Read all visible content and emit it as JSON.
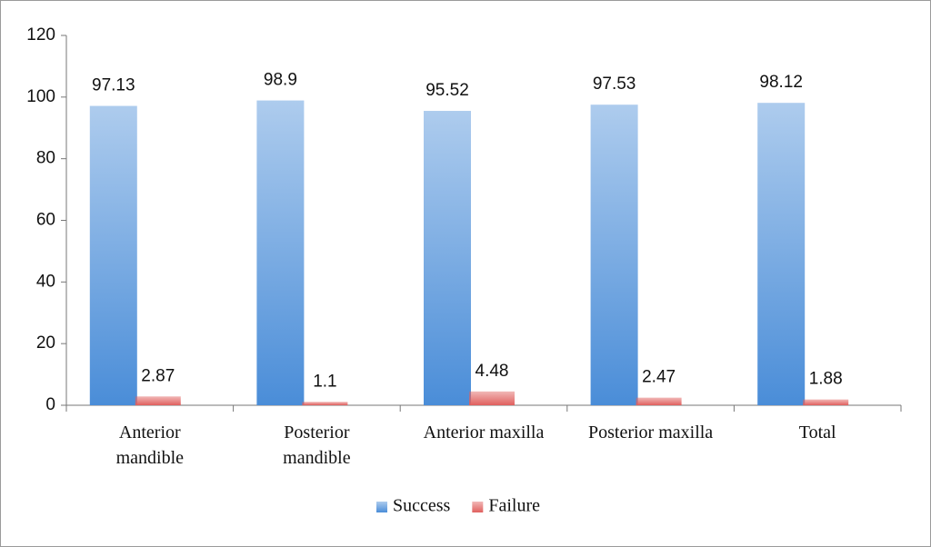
{
  "chart_data": {
    "type": "bar",
    "categories": [
      "Anterior\nmandible",
      "Posterior\nmandible",
      "Anterior maxilla",
      "Posterior maxilla",
      "Total"
    ],
    "series": [
      {
        "name": "Success",
        "color": "#4a8dd8",
        "values": [
          97.13,
          98.9,
          95.52,
          97.53,
          98.12
        ]
      },
      {
        "name": "Failure",
        "color": "#e0605e",
        "values": [
          2.87,
          1.1,
          4.48,
          2.47,
          1.88
        ]
      }
    ],
    "ylim": [
      0,
      120
    ],
    "yticks": [
      0,
      20,
      40,
      60,
      80,
      100,
      120
    ],
    "grid": false,
    "legend": "bottom"
  }
}
